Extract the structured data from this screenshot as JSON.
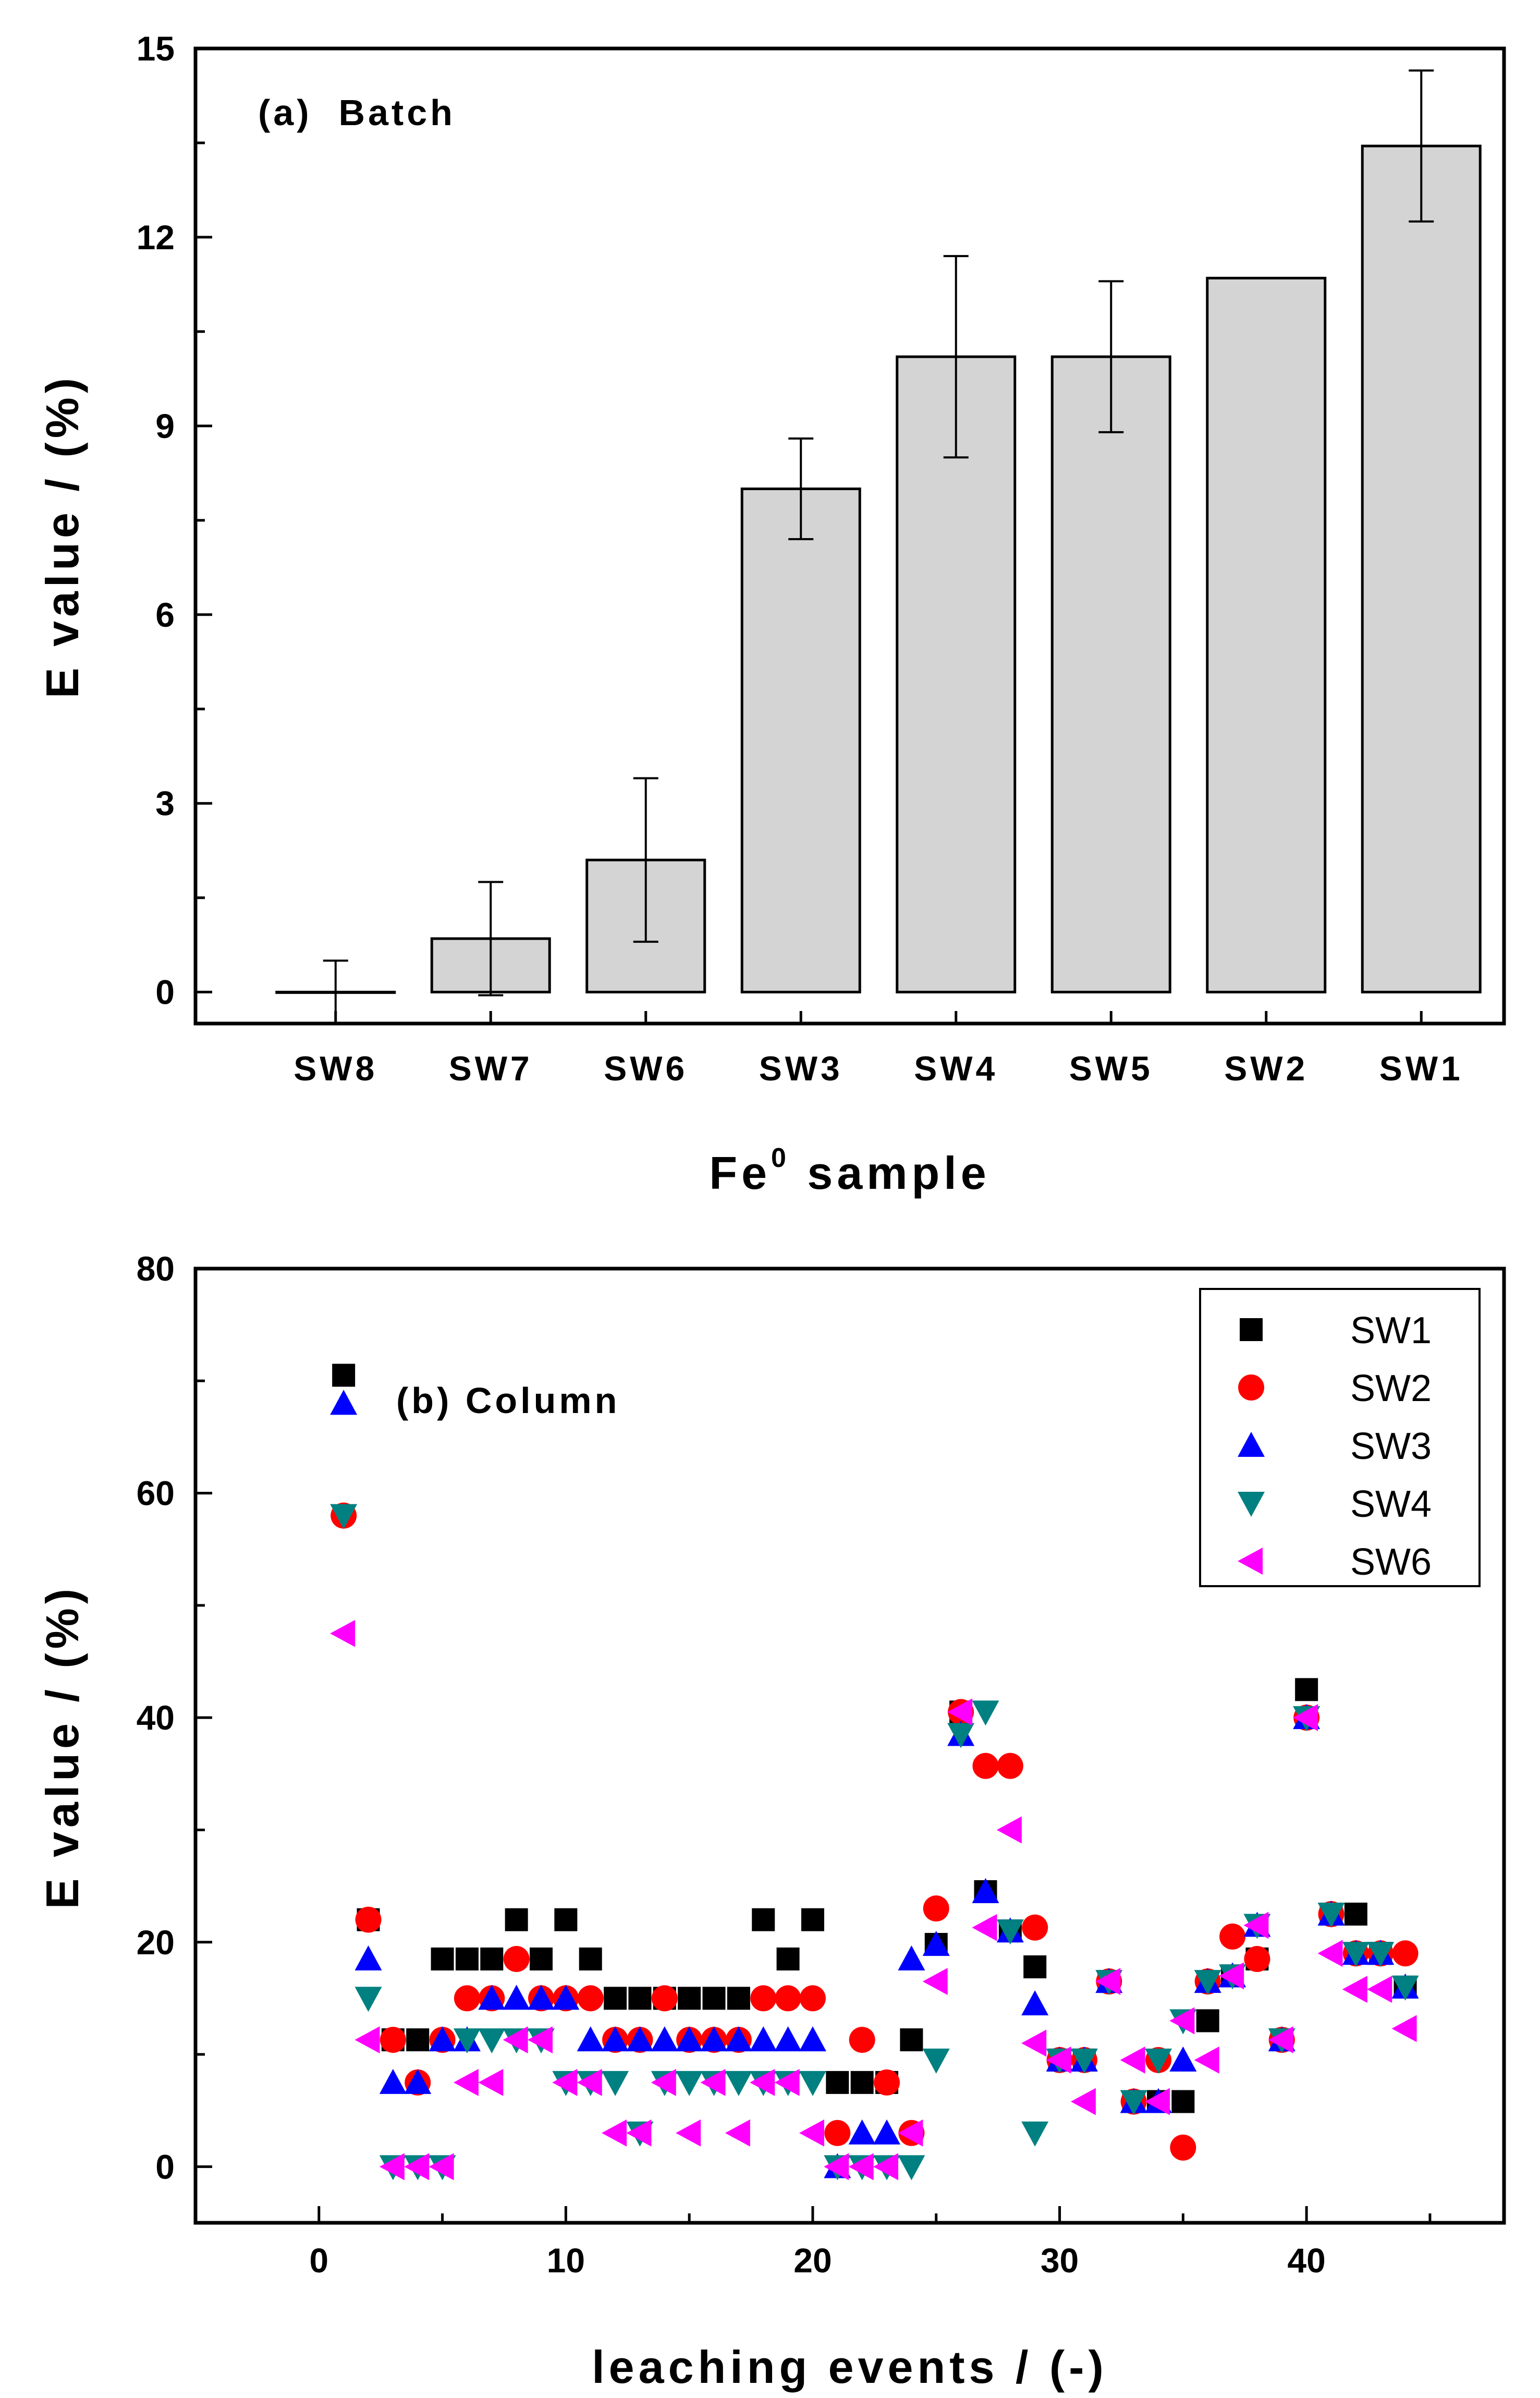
{
  "chart_data": [
    {
      "type": "bar",
      "panel_label": "(a)  Batch",
      "title": "",
      "xlabel": "Fe",
      "xlabel_superscript": "0",
      "xlabel_suffix": " sample",
      "ylabel": "E value / (%)",
      "ylim": [
        -0.5,
        15
      ],
      "yticks": [
        0,
        3,
        6,
        9,
        12,
        15
      ],
      "categories": [
        "SW8",
        "SW7",
        "SW6",
        "SW3",
        "SW4",
        "SW5",
        "SW2",
        "SW1"
      ],
      "values": [
        0.0,
        0.85,
        2.1,
        8.0,
        10.1,
        10.1,
        11.35,
        13.45
      ],
      "errors": [
        0.5,
        0.9,
        1.3,
        0.8,
        1.6,
        1.2,
        null,
        1.2
      ],
      "bar_color": "#d4d4d4"
    },
    {
      "type": "scatter",
      "panel_label": "(b) Column",
      "title": "",
      "xlabel": "leaching events / (-)",
      "ylabel": "E value / (%)",
      "xlim": [
        -5,
        48
      ],
      "ylim": [
        -5,
        80
      ],
      "xticks": [
        0,
        10,
        20,
        30,
        40
      ],
      "yticks": [
        0,
        20,
        40,
        60,
        80
      ],
      "legend_position": "top-right",
      "series": [
        {
          "name": "SW1",
          "marker": "square",
          "color": "#000000",
          "x": [
            1,
            2,
            3,
            4,
            5,
            6,
            7,
            8,
            9,
            10,
            11,
            12,
            13,
            14,
            15,
            16,
            17,
            18,
            19,
            20,
            21,
            22,
            23,
            24,
            25,
            26,
            27,
            28,
            29,
            30,
            31,
            32,
            33,
            34,
            35,
            36,
            37,
            38,
            39,
            40,
            41,
            42,
            43,
            44
          ],
          "y": [
            70.5,
            22,
            11.3,
            11.3,
            18.5,
            18.5,
            18.5,
            22,
            18.5,
            22,
            18.5,
            15,
            15,
            15,
            15,
            15,
            15,
            22,
            18.5,
            22,
            7.5,
            7.5,
            7.5,
            11.3,
            19.8,
            40.5,
            24.5,
            21,
            17.8,
            9.5,
            9.5,
            16.5,
            5.8,
            5.8,
            5.8,
            13,
            17,
            18.5,
            11.3,
            42.5,
            22.5,
            22.5,
            19,
            16
          ]
        },
        {
          "name": "SW2",
          "marker": "circle",
          "color": "#ff0000",
          "x": [
            1,
            2,
            3,
            4,
            5,
            6,
            7,
            8,
            9,
            10,
            11,
            12,
            13,
            14,
            15,
            16,
            17,
            18,
            19,
            20,
            21,
            22,
            23,
            24,
            25,
            26,
            27,
            28,
            29,
            30,
            31,
            32,
            33,
            34,
            35,
            36,
            37,
            38,
            39,
            40,
            41,
            42,
            43,
            44
          ],
          "y": [
            58,
            22,
            11.3,
            7.5,
            11.3,
            15,
            15,
            18.5,
            15,
            15,
            15,
            11.3,
            11.3,
            15,
            11.3,
            11.3,
            11.3,
            15,
            15,
            15,
            3,
            11.3,
            7.5,
            3,
            23,
            40.5,
            35.7,
            35.7,
            21.3,
            9.5,
            9.5,
            16.5,
            5.8,
            9.5,
            1.7,
            16.5,
            20.5,
            18.5,
            11.3,
            40,
            22.5,
            19,
            19,
            19
          ]
        },
        {
          "name": "SW3",
          "marker": "triangle-up",
          "color": "#0000ff",
          "x": [
            1,
            2,
            3,
            4,
            5,
            6,
            7,
            8,
            9,
            10,
            11,
            12,
            13,
            14,
            15,
            16,
            17,
            18,
            19,
            20,
            21,
            22,
            23,
            24,
            25,
            26,
            27,
            28,
            29,
            30,
            31,
            32,
            33,
            34,
            35,
            36,
            37,
            38,
            39,
            40,
            41,
            42,
            43,
            44
          ],
          "y": [
            68,
            18.5,
            7.5,
            7.5,
            11.3,
            11.3,
            15,
            15,
            15,
            15,
            11.3,
            11.3,
            11.3,
            11.3,
            11.3,
            11.3,
            11.3,
            11.3,
            11.3,
            11.3,
            0,
            3,
            3,
            18.5,
            19.8,
            38.5,
            24.5,
            21,
            14.5,
            9.5,
            9.5,
            16.5,
            5.8,
            5.8,
            9.5,
            16.5,
            17,
            21.5,
            11.3,
            40,
            22.5,
            19,
            19,
            16
          ]
        },
        {
          "name": "SW4",
          "marker": "triangle-down",
          "color": "#008080",
          "x": [
            1,
            2,
            3,
            4,
            5,
            6,
            7,
            8,
            9,
            10,
            11,
            12,
            13,
            14,
            15,
            16,
            17,
            18,
            19,
            20,
            21,
            22,
            23,
            24,
            25,
            26,
            27,
            28,
            29,
            30,
            31,
            32,
            33,
            34,
            35,
            36,
            37,
            38,
            39,
            40,
            41,
            42,
            43,
            44
          ],
          "y": [
            58,
            15,
            0,
            0,
            0,
            11.3,
            11.3,
            11.3,
            11.3,
            7.5,
            7.5,
            7.5,
            3,
            7.5,
            7.5,
            7.5,
            7.5,
            7.5,
            7.5,
            7.5,
            0,
            0,
            0,
            0,
            9.5,
            38.5,
            40.5,
            21,
            3,
            9.5,
            9.5,
            16.5,
            5.8,
            9.5,
            13,
            16.5,
            17,
            21.5,
            11.3,
            40,
            22.5,
            19,
            19,
            16
          ]
        },
        {
          "name": "SW6",
          "marker": "triangle-left",
          "color": "#ff00ff",
          "x": [
            1,
            2,
            3,
            4,
            5,
            6,
            7,
            8,
            9,
            10,
            11,
            12,
            13,
            14,
            15,
            16,
            17,
            18,
            19,
            20,
            21,
            22,
            23,
            24,
            25,
            26,
            27,
            28,
            29,
            30,
            31,
            32,
            33,
            34,
            35,
            36,
            37,
            38,
            39,
            40,
            41,
            42,
            43,
            44
          ],
          "y": [
            47.5,
            11.3,
            0,
            0,
            0,
            7.5,
            7.5,
            11.3,
            11.3,
            7.5,
            7.5,
            3,
            3,
            7.5,
            3,
            7.5,
            3,
            7.5,
            7.5,
            3,
            0,
            0,
            0,
            3,
            16.5,
            40.5,
            21.3,
            30,
            11,
            9.5,
            5.8,
            16.5,
            9.5,
            5.8,
            13,
            9.5,
            17,
            21.5,
            11.3,
            40,
            19,
            15.8,
            15.8,
            12.3
          ]
        }
      ]
    }
  ]
}
